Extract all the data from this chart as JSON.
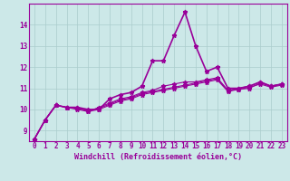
{
  "x": [
    0,
    1,
    2,
    3,
    4,
    5,
    6,
    7,
    8,
    9,
    10,
    11,
    12,
    13,
    14,
    15,
    16,
    17,
    18,
    19,
    20,
    21,
    22,
    23
  ],
  "line1": [
    8.6,
    9.5,
    10.2,
    10.1,
    10.1,
    10.0,
    10.0,
    10.5,
    10.7,
    10.8,
    11.1,
    12.3,
    12.3,
    13.5,
    14.6,
    13.0,
    11.8,
    12.0,
    11.0,
    11.0,
    11.1,
    11.3,
    11.1,
    11.2
  ],
  "line2": [
    8.6,
    9.5,
    10.2,
    10.1,
    10.1,
    9.9,
    10.1,
    10.3,
    10.5,
    10.6,
    10.8,
    10.9,
    11.1,
    11.2,
    11.3,
    11.3,
    11.4,
    11.5,
    10.9,
    11.0,
    11.1,
    11.3,
    11.1,
    11.2
  ],
  "line3": [
    8.6,
    9.5,
    10.2,
    10.1,
    10.0,
    9.9,
    10.0,
    10.2,
    10.4,
    10.5,
    10.7,
    10.8,
    10.9,
    11.0,
    11.1,
    11.2,
    11.3,
    11.4,
    10.85,
    10.95,
    11.05,
    11.2,
    11.05,
    11.15
  ],
  "line4": [
    8.6,
    9.5,
    10.2,
    10.1,
    10.05,
    9.95,
    10.05,
    10.25,
    10.45,
    10.55,
    10.75,
    10.85,
    10.95,
    11.05,
    11.15,
    11.25,
    11.35,
    11.45,
    10.9,
    10.95,
    11.0,
    11.25,
    11.1,
    11.2
  ],
  "line_color": "#990099",
  "bg_color": "#cce8e8",
  "grid_color": "#aacccc",
  "xlim": [
    -0.5,
    23.5
  ],
  "ylim": [
    8.5,
    15.0
  ],
  "xticks": [
    0,
    1,
    2,
    3,
    4,
    5,
    6,
    7,
    8,
    9,
    10,
    11,
    12,
    13,
    14,
    15,
    16,
    17,
    18,
    19,
    20,
    21,
    22,
    23
  ],
  "yticks": [
    9,
    10,
    11,
    12,
    13,
    14
  ],
  "xlabel": "Windchill (Refroidissement éolien,°C)",
  "marker": "*",
  "markersize": 3.5,
  "tick_fontsize": 5.5,
  "label_fontsize": 6.0
}
